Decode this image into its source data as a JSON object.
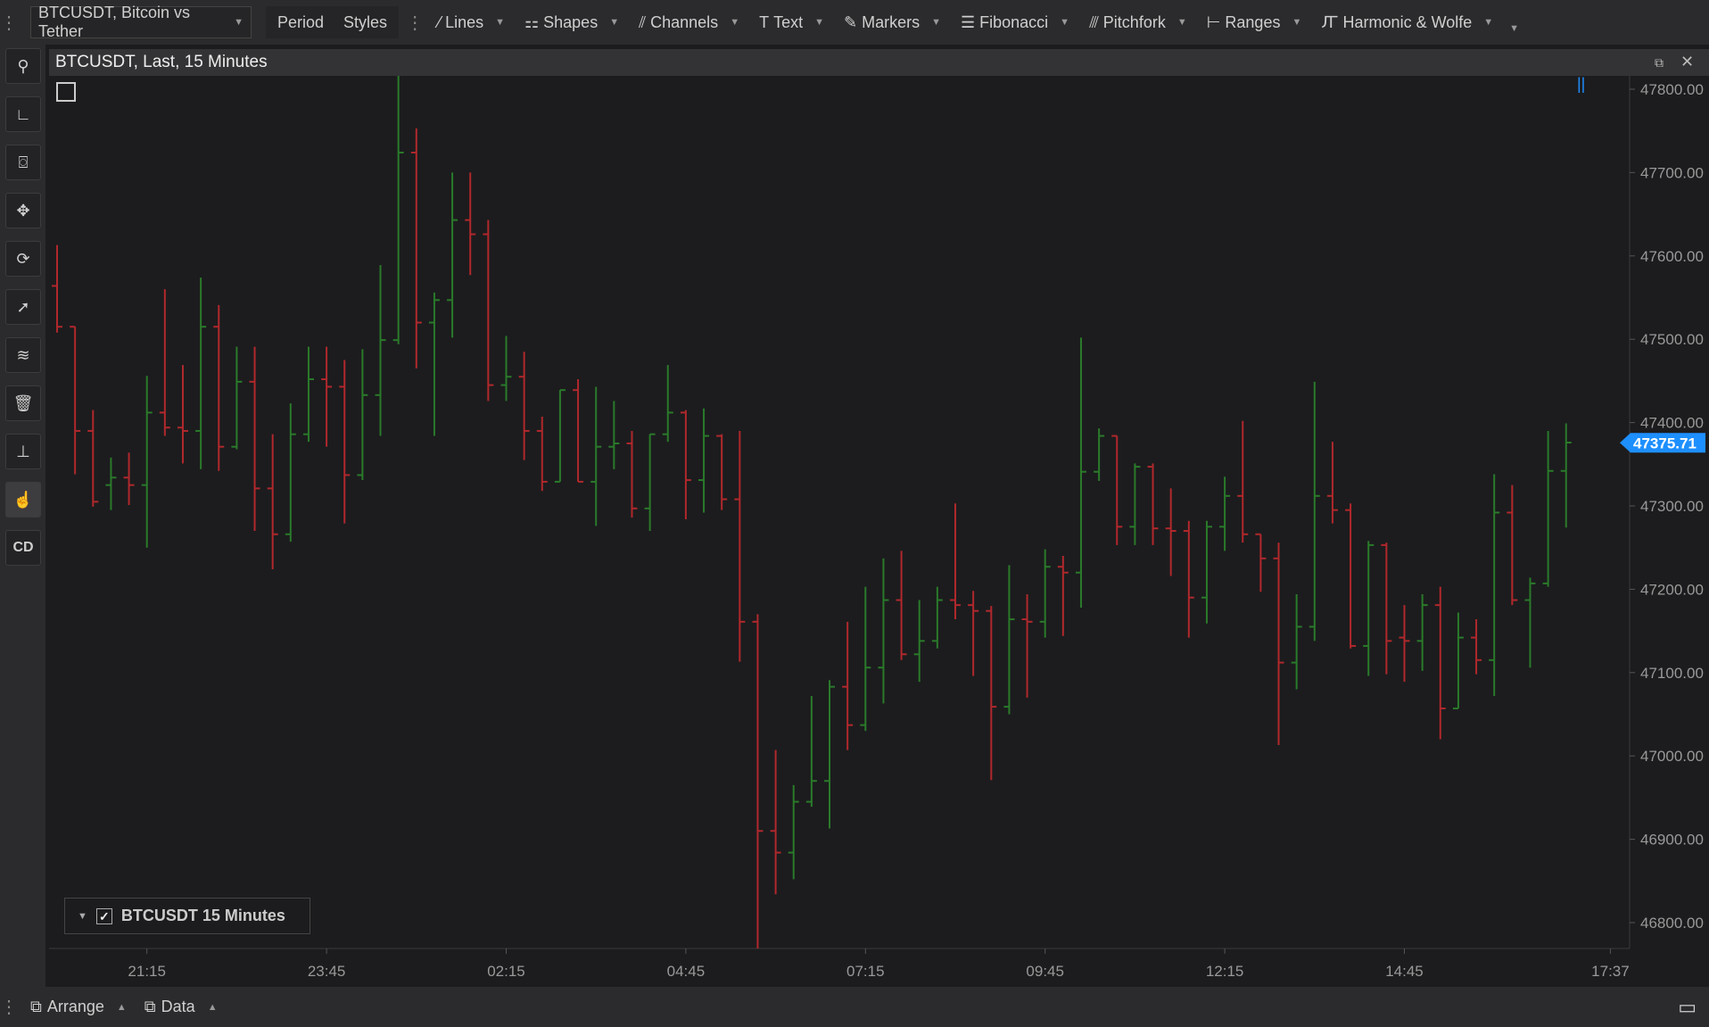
{
  "toolbar": {
    "symbol": "BTCUSDT, Bitcoin vs Tether",
    "period": "Period",
    "styles": "Styles",
    "tools": [
      {
        "label": "Lines",
        "icon": "line-icon",
        "glyph": "⁄"
      },
      {
        "label": "Shapes",
        "icon": "shapes-icon",
        "glyph": "⚏"
      },
      {
        "label": "Channels",
        "icon": "channels-icon",
        "glyph": "⫽"
      },
      {
        "label": "Text",
        "icon": "text-icon",
        "glyph": "T"
      },
      {
        "label": "Markers",
        "icon": "marker-icon",
        "glyph": "✎"
      },
      {
        "label": "Fibonacci",
        "icon": "fibonacci-icon",
        "glyph": "☰"
      },
      {
        "label": "Pitchfork",
        "icon": "pitchfork-icon",
        "glyph": "⫻"
      },
      {
        "label": "Ranges",
        "icon": "ranges-icon",
        "glyph": "⊢"
      },
      {
        "label": "Harmonic & Wolfe",
        "icon": "harmonic-icon",
        "glyph": "Ꙥ"
      }
    ]
  },
  "sidebar": [
    {
      "icon": "search-icon",
      "glyph": "⚲"
    },
    {
      "icon": "ruler-icon",
      "glyph": "∟"
    },
    {
      "icon": "mouse-icon",
      "glyph": "⌼"
    },
    {
      "icon": "pan-icon",
      "glyph": "✥"
    },
    {
      "icon": "refresh-icon",
      "glyph": "⟳"
    },
    {
      "icon": "cursor-icon",
      "glyph": "➚"
    },
    {
      "icon": "layers-icon",
      "glyph": "≋"
    },
    {
      "icon": "trash-icon",
      "glyph": "🗑"
    },
    {
      "icon": "axis-icon",
      "glyph": "⊥"
    },
    {
      "icon": "hand-click-icon",
      "glyph": "☝"
    },
    {
      "icon": "cd-icon",
      "glyph": "CD"
    }
  ],
  "chart_header": {
    "title": "BTCUSDT, Last, 15 Minutes"
  },
  "legend": {
    "label": "BTCUSDT 15 Minutes",
    "checked": true
  },
  "bottom": {
    "arrange": "Arrange",
    "data": "Data"
  },
  "chart_data": {
    "type": "ohlc",
    "title": "BTCUSDT, Last, 15 Minutes",
    "interval": "15 Minutes",
    "colors": {
      "up": "#2a7a2a",
      "down": "#b0282c",
      "last_price": "#1e8fff"
    },
    "ylim": [
      46760,
      47830
    ],
    "y_ticks": [
      47800,
      47700,
      47600,
      47500,
      47400,
      47300,
      47200,
      47100,
      47000,
      46900,
      46800
    ],
    "y_tick_labels": [
      "47800.00",
      "47700.00",
      "47600.00",
      "47500.00",
      "47400.00",
      "47300.00",
      "47200.00",
      "47100.00",
      "47000.00",
      "46900.00",
      "46800.00"
    ],
    "x_ticks": [
      "21:15",
      "23:45",
      "02:15",
      "04:45",
      "07:15",
      "09:45",
      "12:15",
      "14:45",
      "17:37"
    ],
    "last_price": "47375.71",
    "grid": false,
    "columns": [
      "time",
      "open",
      "high",
      "low",
      "close"
    ],
    "bars": [
      [
        "20:00",
        47564,
        47613,
        47508,
        47515
      ],
      [
        "20:15",
        47515,
        47515,
        47338,
        47390
      ],
      [
        "20:30",
        47390,
        47415,
        47299,
        47305
      ],
      [
        "20:45",
        47325,
        47358,
        47295,
        47334
      ],
      [
        "21:00",
        47334,
        47364,
        47301,
        47325
      ],
      [
        "21:15",
        47325,
        47456,
        47250,
        47412
      ],
      [
        "21:30",
        47412,
        47560,
        47384,
        47394
      ],
      [
        "21:45",
        47394,
        47469,
        47351,
        47390
      ],
      [
        "22:00",
        47390,
        47574,
        47344,
        47515
      ],
      [
        "22:15",
        47515,
        47541,
        47342,
        47371
      ],
      [
        "22:30",
        47371,
        47491,
        47368,
        47449
      ],
      [
        "22:45",
        47449,
        47491,
        47270,
        47321
      ],
      [
        "23:00",
        47321,
        47386,
        47224,
        47266
      ],
      [
        "23:15",
        47266,
        47423,
        47257,
        47386
      ],
      [
        "23:30",
        47386,
        47491,
        47377,
        47452
      ],
      [
        "23:45",
        47452,
        47491,
        47371,
        47443
      ],
      [
        "00:00",
        47443,
        47475,
        47279,
        47337
      ],
      [
        "00:15",
        47337,
        47488,
        47331,
        47433
      ],
      [
        "00:30",
        47433,
        47589,
        47384,
        47499
      ],
      [
        "00:45",
        47499,
        47816,
        47494,
        47724
      ],
      [
        "01:00",
        47724,
        47753,
        47465,
        47520
      ],
      [
        "01:15",
        47520,
        47556,
        47384,
        47547
      ],
      [
        "01:30",
        47547,
        47700,
        47502,
        47643
      ],
      [
        "01:45",
        47643,
        47700,
        47577,
        47626
      ],
      [
        "02:00",
        47626,
        47643,
        47426,
        47445
      ],
      [
        "02:15",
        47445,
        47504,
        47426,
        47455
      ],
      [
        "02:30",
        47455,
        47485,
        47355,
        47390
      ],
      [
        "02:45",
        47390,
        47407,
        47318,
        47329
      ],
      [
        "03:00",
        47329,
        47439,
        47329,
        47439
      ],
      [
        "03:15",
        47439,
        47452,
        47329,
        47329
      ],
      [
        "03:30",
        47329,
        47443,
        47276,
        47371
      ],
      [
        "03:45",
        47371,
        47426,
        47344,
        47375
      ],
      [
        "04:00",
        47375,
        47390,
        47286,
        47297
      ],
      [
        "04:15",
        47297,
        47386,
        47270,
        47386
      ],
      [
        "04:30",
        47386,
        47469,
        47377,
        47412
      ],
      [
        "04:45",
        47412,
        47415,
        47284,
        47331
      ],
      [
        "05:00",
        47331,
        47417,
        47292,
        47384
      ],
      [
        "05:15",
        47384,
        47386,
        47295,
        47308
      ],
      [
        "05:30",
        47308,
        47390,
        47113,
        47161
      ],
      [
        "05:45",
        47161,
        47170,
        46769,
        46910
      ],
      [
        "06:00",
        46910,
        47007,
        46834,
        46884
      ],
      [
        "06:15",
        46884,
        46965,
        46852,
        46945
      ],
      [
        "06:30",
        46945,
        47072,
        46939,
        46970
      ],
      [
        "06:45",
        46970,
        47091,
        46913,
        47083
      ],
      [
        "07:00",
        47083,
        47161,
        47007,
        47037
      ],
      [
        "07:15",
        47037,
        47203,
        47030,
        47106
      ],
      [
        "07:30",
        47106,
        47237,
        47063,
        47187
      ],
      [
        "07:45",
        47187,
        47246,
        47115,
        47122
      ],
      [
        "08:00",
        47122,
        47187,
        47089,
        47138
      ],
      [
        "08:15",
        47138,
        47203,
        47129,
        47187
      ],
      [
        "08:30",
        47187,
        47303,
        47164,
        47181
      ],
      [
        "08:45",
        47181,
        47198,
        47096,
        47174
      ],
      [
        "09:00",
        47174,
        47180,
        46971,
        47059
      ],
      [
        "09:15",
        47059,
        47229,
        47050,
        47164
      ],
      [
        "09:30",
        47164,
        47194,
        47070,
        47161
      ],
      [
        "09:45",
        47161,
        47248,
        47142,
        47227
      ],
      [
        "10:00",
        47227,
        47240,
        47144,
        47220
      ],
      [
        "10:15",
        47220,
        47502,
        47178,
        47341
      ],
      [
        "10:30",
        47341,
        47393,
        47330,
        47384
      ],
      [
        "10:45",
        47384,
        47384,
        47253,
        47275
      ],
      [
        "11:00",
        47275,
        47351,
        47253,
        47347
      ],
      [
        "11:15",
        47347,
        47351,
        47253,
        47273
      ],
      [
        "11:30",
        47273,
        47321,
        47216,
        47270
      ],
      [
        "11:45",
        47270,
        47282,
        47142,
        47190
      ],
      [
        "12:00",
        47190,
        47282,
        47159,
        47275
      ],
      [
        "12:15",
        47275,
        47335,
        47246,
        47312
      ],
      [
        "12:30",
        47312,
        47402,
        47256,
        47266
      ],
      [
        "12:45",
        47266,
        47266,
        47197,
        47237
      ],
      [
        "13:00",
        47237,
        47256,
        47013,
        47112
      ],
      [
        "13:15",
        47112,
        47194,
        47080,
        47155
      ],
      [
        "13:30",
        47155,
        47449,
        47138,
        47312
      ],
      [
        "13:45",
        47312,
        47377,
        47279,
        47295
      ],
      [
        "14:00",
        47295,
        47303,
        47129,
        47132
      ],
      [
        "14:15",
        47132,
        47258,
        47096,
        47253
      ],
      [
        "14:30",
        47253,
        47256,
        47098,
        47138
      ],
      [
        "14:45",
        47142,
        47181,
        47089,
        47138
      ],
      [
        "15:00",
        47138,
        47194,
        47102,
        47181
      ],
      [
        "15:15",
        47181,
        47203,
        47020,
        47057
      ],
      [
        "15:30",
        47057,
        47172,
        47057,
        47142
      ],
      [
        "15:45",
        47142,
        47164,
        47098,
        47115
      ],
      [
        "16:00",
        47115,
        47338,
        47072,
        47292
      ],
      [
        "16:15",
        47292,
        47325,
        47181,
        47187
      ],
      [
        "16:30",
        47187,
        47214,
        47106,
        47207
      ],
      [
        "16:45",
        47207,
        47390,
        47203,
        47342
      ],
      [
        "17:00",
        47342,
        47399,
        47274,
        47376
      ]
    ]
  }
}
